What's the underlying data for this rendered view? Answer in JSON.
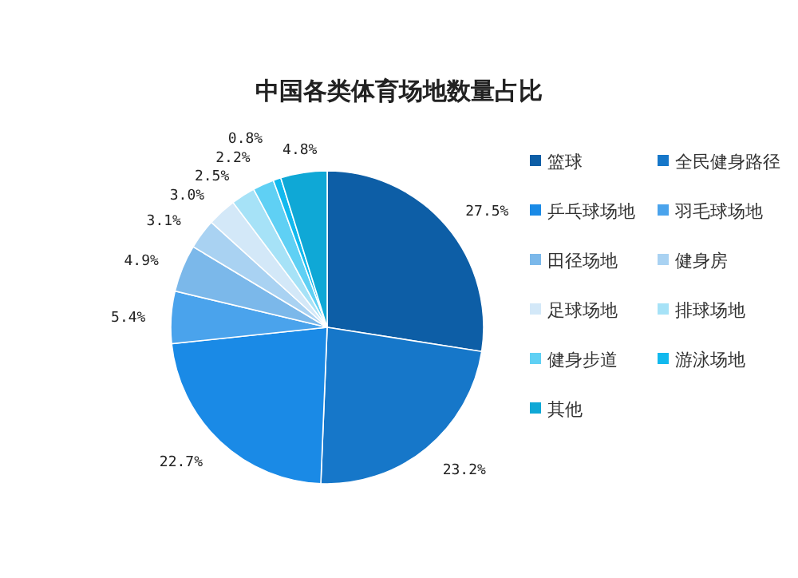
{
  "chart_data": {
    "type": "pie",
    "title": "中国各类体育场地数量占比",
    "categories": [
      "篮球",
      "全民健身路径",
      "乒乓球场地",
      "羽毛球场地",
      "田径场地",
      "健身房",
      "足球场地",
      "排球场地",
      "健身步道",
      "游泳场地",
      "其他"
    ],
    "values": [
      27.5,
      23.2,
      22.7,
      5.4,
      4.9,
      3.1,
      3.0,
      2.5,
      2.2,
      0.8,
      4.8
    ],
    "value_labels": [
      "27.5%",
      "23.2%",
      "22.7%",
      "5.4%",
      "4.9%",
      "3.1%",
      "3.0%",
      "2.5%",
      "2.2%",
      "0.8%",
      "4.8%"
    ],
    "colors": [
      "#0d5ea6",
      "#1677c9",
      "#1a8ae6",
      "#4aa3ec",
      "#7bb8ea",
      "#a9d2f2",
      "#d3e8f8",
      "#a6e2f7",
      "#5fd0f4",
      "#12b9ee",
      "#0fa8d6"
    ],
    "legend": "right"
  }
}
